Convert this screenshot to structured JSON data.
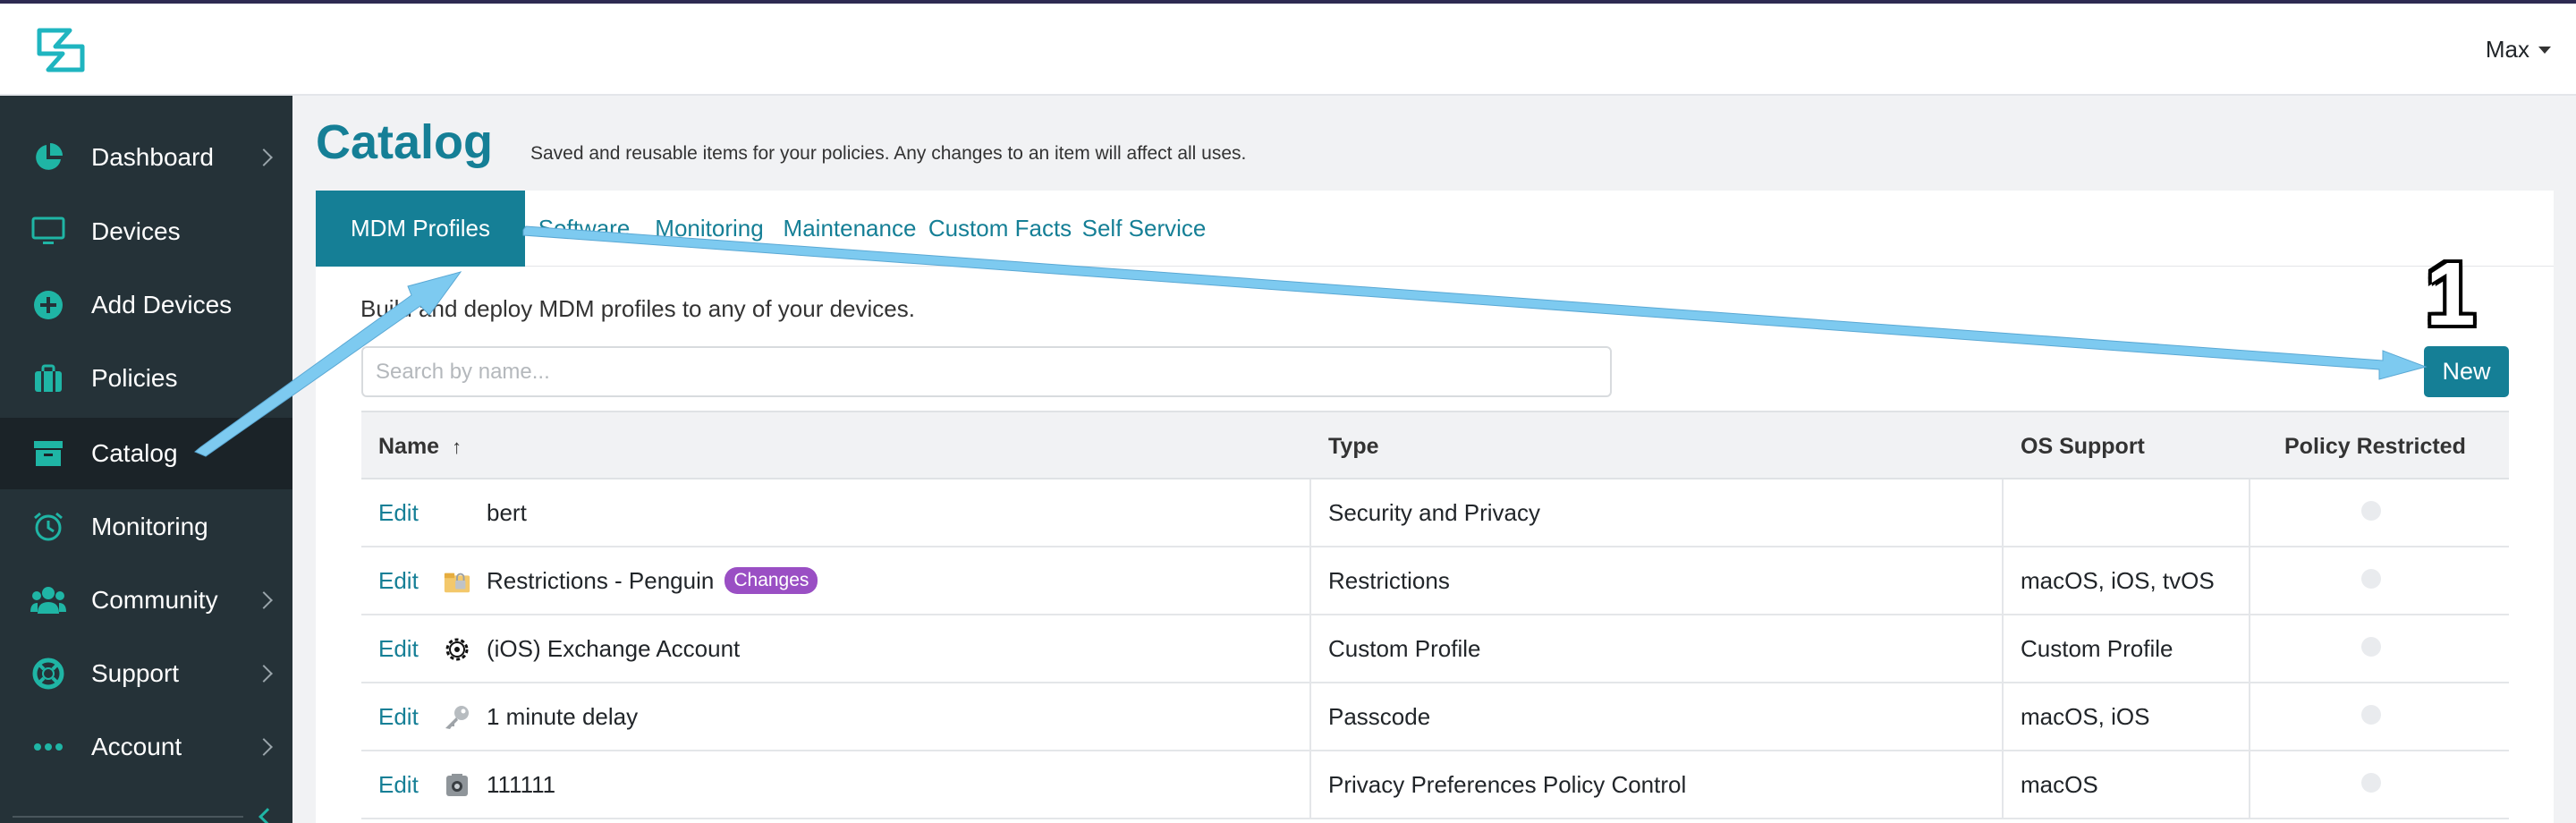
{
  "app": {
    "user_name": "Max",
    "logo_icon": "kandji-logo-icon",
    "accent_color": "#157f96",
    "sidebar_bg": "#253238"
  },
  "sidebar": {
    "items": [
      {
        "label": "Dashboard",
        "icon": "pie-chart-icon",
        "has_submenu": true
      },
      {
        "label": "Devices",
        "icon": "monitor-icon",
        "has_submenu": false
      },
      {
        "label": "Add Devices",
        "icon": "plus-circle-icon",
        "has_submenu": false
      },
      {
        "label": "Policies",
        "icon": "briefcase-icon",
        "has_submenu": false
      },
      {
        "label": "Catalog",
        "icon": "archive-box-icon",
        "has_submenu": false,
        "active": true
      },
      {
        "label": "Monitoring",
        "icon": "alarm-clock-icon",
        "has_submenu": false
      },
      {
        "label": "Community",
        "icon": "users-icon",
        "has_submenu": true
      },
      {
        "label": "Support",
        "icon": "life-ring-icon",
        "has_submenu": true
      },
      {
        "label": "Account",
        "icon": "ellipsis-icon",
        "has_submenu": true
      }
    ]
  },
  "page": {
    "title": "Catalog",
    "subtitle": "Saved and reusable items for your policies. Any changes to an item will affect all uses."
  },
  "tabs": [
    {
      "label": "MDM Profiles",
      "active": true
    },
    {
      "label": "Software"
    },
    {
      "label": "Monitoring"
    },
    {
      "label": "Maintenance"
    },
    {
      "label": "Custom Facts"
    },
    {
      "label": "Self Service"
    }
  ],
  "profiles": {
    "description": "Build and deploy MDM profiles to any of your devices.",
    "search_placeholder": "Search by name...",
    "new_label": "New"
  },
  "table": {
    "columns": {
      "name": "Name",
      "sort_indicator": "↑",
      "type": "Type",
      "os_support": "OS Support",
      "policy_restricted": "Policy Restricted"
    },
    "rows": [
      {
        "edit": "Edit",
        "icon": "none",
        "name": "bert",
        "badge": "",
        "type": "Security and Privacy",
        "os": "",
        "restricted": false
      },
      {
        "edit": "Edit",
        "icon": "lock-folder-icon",
        "name": "Restrictions - Penguin",
        "badge": "Changes",
        "type": "Restrictions",
        "os": "macOS, iOS, tvOS",
        "restricted": false
      },
      {
        "edit": "Edit",
        "icon": "gear-icon",
        "name": "(iOS) Exchange Account",
        "badge": "",
        "type": "Custom Profile",
        "os": "Custom Profile",
        "restricted": false
      },
      {
        "edit": "Edit",
        "icon": "key-icon",
        "name": "1 minute delay",
        "badge": "",
        "type": "Passcode",
        "os": "macOS, iOS",
        "restricted": false
      },
      {
        "edit": "Edit",
        "icon": "camera-icon",
        "name": "111111",
        "badge": "",
        "type": "Privacy Preferences Policy Control",
        "os": "macOS",
        "restricted": false
      }
    ]
  },
  "annotation": {
    "step_number": "1",
    "arrow_color": "#7dcaf0"
  }
}
